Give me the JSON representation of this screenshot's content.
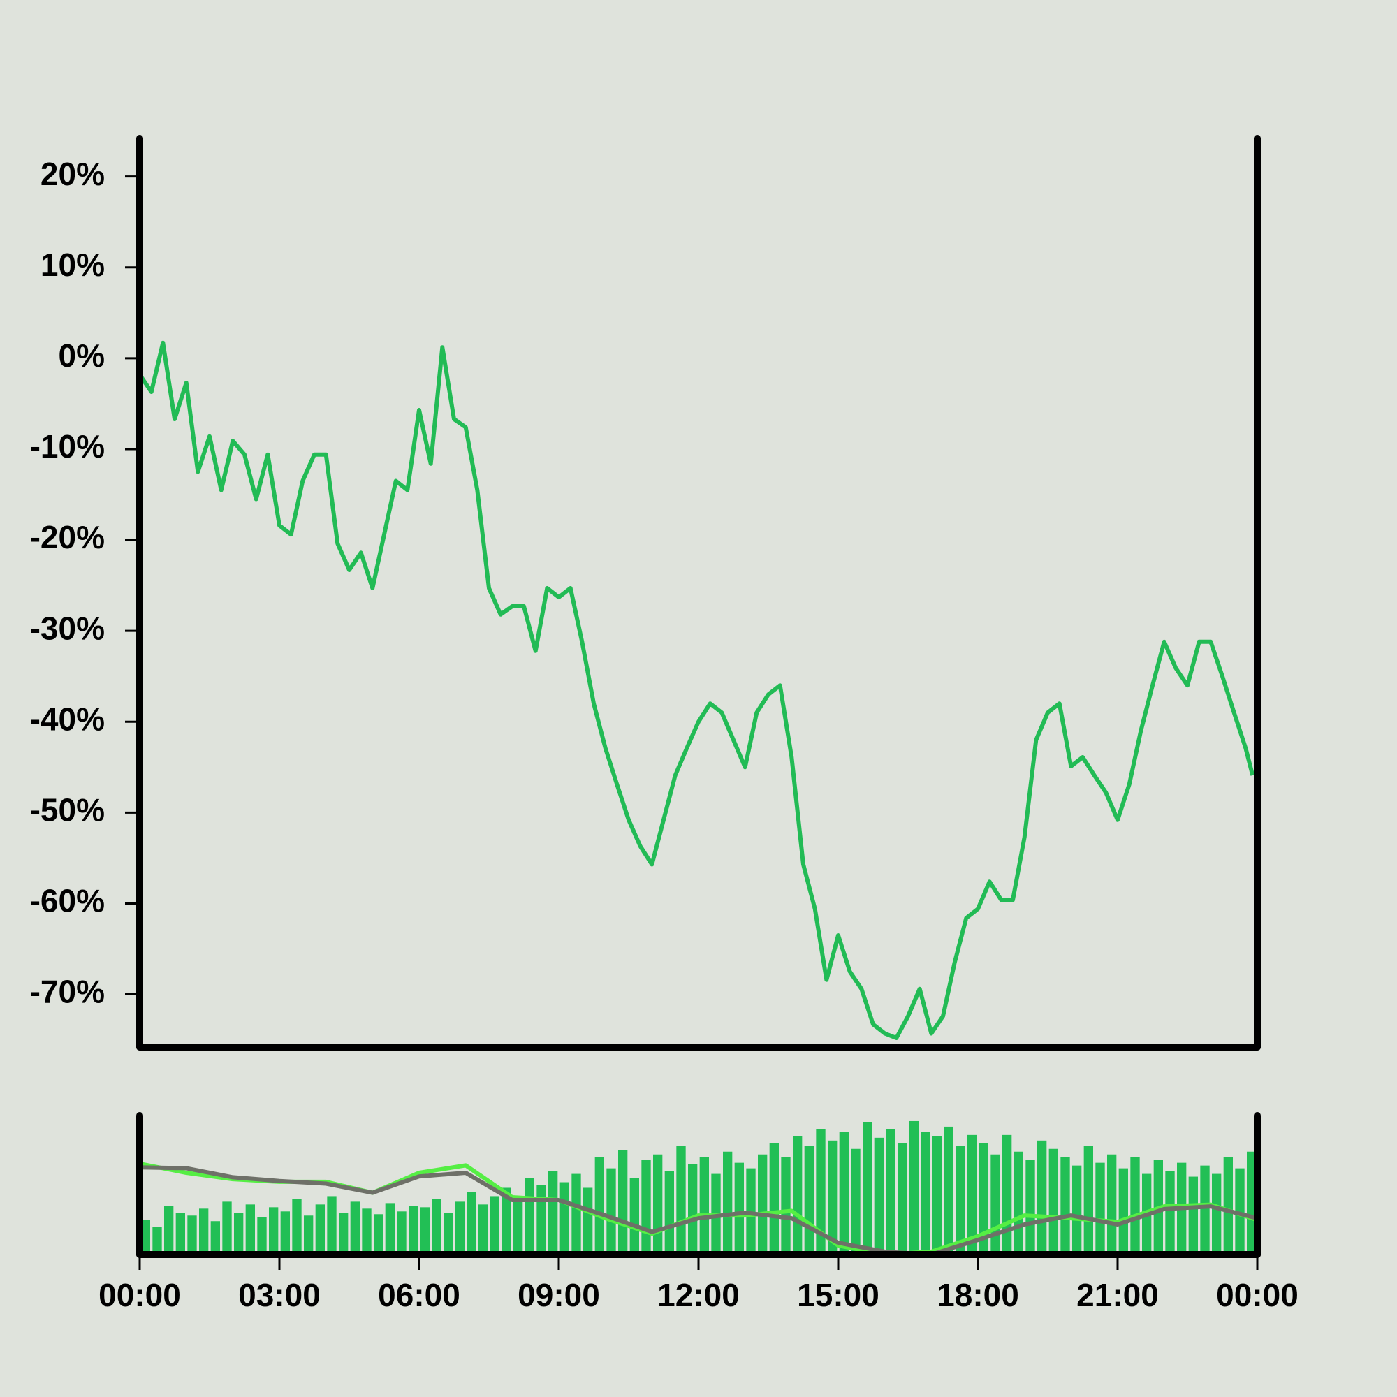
{
  "chart_data": [
    {
      "type": "line",
      "color": "#22bb55",
      "xlim": [
        0,
        24
      ],
      "ylim": [
        -75.8,
        24.2
      ],
      "yticks": [
        {
          "value": 20,
          "label": "20%"
        },
        {
          "value": 10,
          "label": "10%"
        },
        {
          "value": 0,
          "label": "0%"
        },
        {
          "value": -10,
          "label": "-10%"
        },
        {
          "value": -20,
          "label": "-20%"
        },
        {
          "value": -30,
          "label": "-30%"
        },
        {
          "value": -40,
          "label": "-40%"
        },
        {
          "value": -50,
          "label": "-50%"
        },
        {
          "value": -60,
          "label": "-60%"
        },
        {
          "value": -70,
          "label": "-70%"
        }
      ],
      "x": [
        0,
        0.25,
        0.5,
        0.75,
        1,
        1.25,
        1.5,
        1.75,
        2,
        2.25,
        2.5,
        2.75,
        3,
        3.25,
        3.5,
        3.75,
        4,
        4.25,
        4.5,
        4.75,
        5,
        5.25,
        5.5,
        5.75,
        6,
        6.25,
        6.5,
        6.75,
        7,
        7.25,
        7.5,
        7.75,
        8,
        8.25,
        8.5,
        8.75,
        9,
        9.25,
        9.5,
        9.75,
        10,
        10.25,
        10.5,
        10.75,
        11,
        11.25,
        11.5,
        11.75,
        12,
        12.25,
        12.5,
        12.75,
        13,
        13.25,
        13.5,
        13.75,
        14,
        14.25,
        14.5,
        14.75,
        15,
        15.25,
        15.5,
        15.75,
        16,
        16.25,
        16.5,
        16.75,
        17,
        17.25,
        17.5,
        17.75,
        18,
        18.25,
        18.5,
        18.75,
        19,
        19.25,
        19.5,
        19.75,
        20,
        20.25,
        20.5,
        20.75,
        21,
        21.25,
        21.5,
        21.75,
        22,
        22.25,
        22.5,
        22.75,
        23,
        23.25,
        23.5,
        23.75,
        23.9
      ],
      "values": [
        -1.8,
        -3.7,
        1.7,
        -6.7,
        -2.7,
        -12.5,
        -8.6,
        -14.5,
        -9.1,
        -10.6,
        -15.5,
        -10.6,
        -18.4,
        -19.4,
        -13.5,
        -10.6,
        -10.6,
        -20.4,
        -23.3,
        -21.4,
        -25.3,
        -19.4,
        -13.5,
        -14.5,
        -5.7,
        -11.6,
        1.2,
        -6.7,
        -7.6,
        -14.5,
        -25.3,
        -28.2,
        -27.3,
        -27.3,
        -32.2,
        -25.3,
        -26.3,
        -25.3,
        -31.2,
        -38,
        -42.9,
        -46.9,
        -50.8,
        -53.7,
        -55.7,
        -50.8,
        -45.9,
        -42.9,
        -40,
        -38,
        -39,
        -42,
        -45,
        -39,
        -37,
        -36,
        -43.9,
        -55.7,
        -60.6,
        -68.4,
        -63.5,
        -67.5,
        -69.4,
        -73.3,
        -74.3,
        -74.8,
        -72.4,
        -69.4,
        -74.3,
        -72.4,
        -66.5,
        -61.6,
        -60.6,
        -57.6,
        -59.6,
        -59.6,
        -52.7,
        -42,
        -39,
        -38,
        -44.9,
        -43.9,
        -45.9,
        -47.8,
        -50.8,
        -46.9,
        -41,
        -36,
        -31.2,
        -34.1,
        -36,
        -31.2,
        -31.2,
        -35,
        -39,
        -42.9,
        -45.9
      ]
    },
    {
      "type": "bar",
      "color": "#22bf55",
      "xlim": [
        0,
        24
      ],
      "ylim": [
        0,
        100
      ],
      "xticks": [
        {
          "value": 0,
          "label": "00:00"
        },
        {
          "value": 3,
          "label": "03:00"
        },
        {
          "value": 6,
          "label": "06:00"
        },
        {
          "value": 9,
          "label": "09:00"
        },
        {
          "value": 12,
          "label": "12:00"
        },
        {
          "value": 15,
          "label": "15:00"
        },
        {
          "value": 18,
          "label": "18:00"
        },
        {
          "value": 21,
          "label": "21:00"
        },
        {
          "value": 24,
          "label": "00:00"
        }
      ],
      "x": [
        0.125,
        0.375,
        0.625,
        0.875,
        1.125,
        1.375,
        1.625,
        1.875,
        2.125,
        2.375,
        2.625,
        2.875,
        3.125,
        3.375,
        3.625,
        3.875,
        4.125,
        4.375,
        4.625,
        4.875,
        5.125,
        5.375,
        5.625,
        5.875,
        6.125,
        6.375,
        6.625,
        6.875,
        7.125,
        7.375,
        7.625,
        7.875,
        8.125,
        8.375,
        8.625,
        8.875,
        9.125,
        9.375,
        9.625,
        9.875,
        10.125,
        10.375,
        10.625,
        10.875,
        11.125,
        11.375,
        11.625,
        11.875,
        12.125,
        12.375,
        12.625,
        12.875,
        13.125,
        13.375,
        13.625,
        13.875,
        14.125,
        14.375,
        14.625,
        14.875,
        15.125,
        15.375,
        15.625,
        15.875,
        16.125,
        16.375,
        16.625,
        16.875,
        17.125,
        17.375,
        17.625,
        17.875,
        18.125,
        18.375,
        18.625,
        18.875,
        19.125,
        19.375,
        19.625,
        19.875,
        20.125,
        20.375,
        20.625,
        20.875,
        21.125,
        21.375,
        21.625,
        21.875,
        22.125,
        22.375,
        22.625,
        22.875,
        23.125,
        23.375,
        23.625,
        23.875
      ],
      "values": [
        25,
        20,
        35,
        30,
        28,
        33,
        24,
        38,
        30,
        36,
        27,
        34,
        31,
        40,
        28,
        36,
        42,
        30,
        38,
        33,
        29,
        37,
        31,
        35,
        34,
        40,
        30,
        38,
        45,
        36,
        42,
        48,
        40,
        55,
        50,
        60,
        52,
        58,
        48,
        70,
        62,
        75,
        55,
        68,
        72,
        60,
        78,
        65,
        70,
        58,
        74,
        66,
        62,
        72,
        80,
        70,
        85,
        78,
        90,
        82,
        88,
        76,
        95,
        84,
        90,
        80,
        96,
        88,
        85,
        92,
        78,
        86,
        80,
        72,
        86,
        74,
        68,
        82,
        76,
        70,
        64,
        78,
        66,
        72,
        62,
        70,
        58,
        68,
        60,
        66,
        56,
        64,
        58,
        70,
        62,
        74
      ],
      "series": [
        {
          "color": "#55ee44",
          "x": [
            0,
            1,
            2,
            3,
            4,
            5,
            6,
            7,
            8,
            9,
            10,
            11,
            12,
            13,
            14,
            15,
            16,
            17,
            18,
            19,
            20,
            21,
            22,
            23,
            24
          ],
          "values": [
            65.4,
            58.8,
            54.2,
            52.3,
            52.3,
            44.4,
            58.8,
            64.1,
            41.2,
            39.2,
            26.1,
            15,
            28.1,
            28.1,
            31.4,
            6.5,
            0,
            2,
            13.1,
            28.1,
            26.1,
            23.5,
            34.6,
            35.9,
            24.8
          ]
        },
        {
          "color": "#6e7068",
          "x": [
            0,
            1,
            2,
            3,
            4,
            5,
            6,
            7,
            8,
            9,
            10,
            11,
            12,
            13,
            14,
            15,
            16,
            17,
            18,
            19,
            20,
            21,
            22,
            23,
            24
          ],
          "values": [
            62.7,
            62.1,
            55.6,
            52.9,
            51,
            44.4,
            56.2,
            58.8,
            39.2,
            39.2,
            28.1,
            16.3,
            26.1,
            30.1,
            26.1,
            8.5,
            2,
            0,
            10.5,
            21.6,
            28.1,
            21.6,
            32.7,
            34.6,
            26.1
          ]
        }
      ]
    }
  ]
}
